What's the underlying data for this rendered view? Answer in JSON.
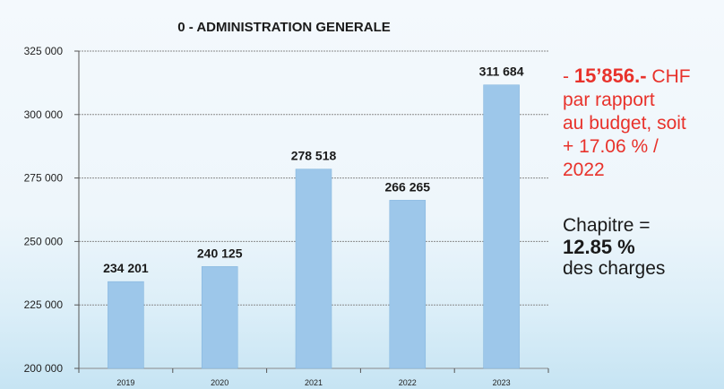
{
  "chart_data": {
    "type": "bar",
    "title": "0 - ADMINISTRATION GENERALE",
    "categories": [
      "2019",
      "2020",
      "2021",
      "2022",
      "2023"
    ],
    "values": [
      234201,
      240125,
      278518,
      266265,
      311684
    ],
    "value_labels": [
      "234 201",
      "240 125",
      "278 518",
      "266 265",
      "311 684"
    ],
    "ylim": [
      200000,
      325000
    ],
    "yticks": [
      200000,
      225000,
      250000,
      275000,
      300000,
      325000
    ],
    "ytick_labels": [
      "200 000",
      "225 000",
      "250 000",
      "275 000",
      "300 000",
      "325 000"
    ],
    "grid": true,
    "bar_color": "#9dc7ea"
  },
  "annotation": {
    "line1_prefix": "- ",
    "line1_amount": "15’856.-",
    "line1_suffix": " CHF",
    "line2": "par rapport",
    "line3": "au budget, soit",
    "line4": "+ 17.06 % /",
    "line5": "2022",
    "color": "#e8322b"
  },
  "share": {
    "line1": "Chapitre =",
    "value": "12.85 %",
    "line3": "des charges"
  }
}
